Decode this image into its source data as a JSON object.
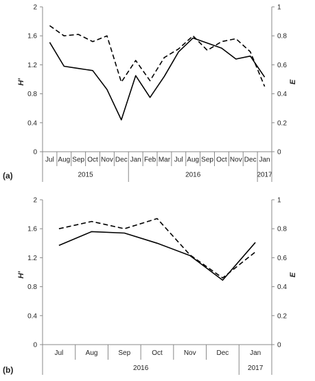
{
  "chart_data": [
    {
      "panel_label": "(a)",
      "type": "line",
      "categories": [
        "Jul",
        "Aug",
        "Sep",
        "Oct",
        "Nov",
        "Dec",
        "Jan",
        "Feb",
        "Mar",
        "Jul",
        "Aug",
        "Sep",
        "Oct",
        "Nov",
        "Dec",
        "Jan"
      ],
      "year_groups": [
        {
          "label": "2015",
          "span": 6
        },
        {
          "label": "2016",
          "span": 9
        },
        {
          "label": "2017",
          "span": 1
        }
      ],
      "ylabel": "H'",
      "y2label": "E",
      "ylim": [
        0,
        2
      ],
      "y2lim": [
        0,
        1
      ],
      "yticks": [
        "0",
        "0.4",
        "0.8",
        "1.2",
        "1.6",
        "2"
      ],
      "y2ticks": [
        "0",
        "0.2",
        "0.4",
        "0.6",
        "0.8",
        "1"
      ],
      "series": [
        {
          "axis": "left",
          "style": "solid",
          "values": [
            1.51,
            1.18,
            1.15,
            1.12,
            0.86,
            0.44,
            1.05,
            0.75,
            1.04,
            1.38,
            1.57,
            1.5,
            1.43,
            1.28,
            1.32,
            1.03
          ]
        },
        {
          "axis": "right",
          "style": "dashed",
          "values": [
            0.87,
            0.8,
            0.81,
            0.76,
            0.8,
            0.48,
            0.63,
            0.49,
            0.65,
            0.71,
            0.8,
            0.7,
            0.76,
            0.78,
            0.69,
            0.45
          ]
        }
      ]
    },
    {
      "panel_label": "(b)",
      "type": "line",
      "categories": [
        "Jul",
        "Aug",
        "Sep",
        "Oct",
        "Nov",
        "Dec",
        "Jan"
      ],
      "year_groups": [
        {
          "label": "2016",
          "span": 6
        },
        {
          "label": "2017",
          "span": 1
        }
      ],
      "ylabel": "H'",
      "y2label": "E",
      "ylim": [
        0,
        2
      ],
      "y2lim": [
        0,
        1
      ],
      "yticks": [
        "0",
        "0.4",
        "0.8",
        "1.2",
        "1.6",
        "2"
      ],
      "y2ticks": [
        "0",
        "0.2",
        "0.4",
        "0.6",
        "0.8",
        "1"
      ],
      "series": [
        {
          "axis": "left",
          "style": "solid",
          "values": [
            1.37,
            1.56,
            1.54,
            1.4,
            1.23,
            0.89,
            1.41
          ]
        },
        {
          "axis": "right",
          "style": "dashed",
          "values": [
            0.8,
            0.85,
            0.8,
            0.87,
            0.62,
            0.46,
            0.64
          ]
        }
      ]
    }
  ]
}
